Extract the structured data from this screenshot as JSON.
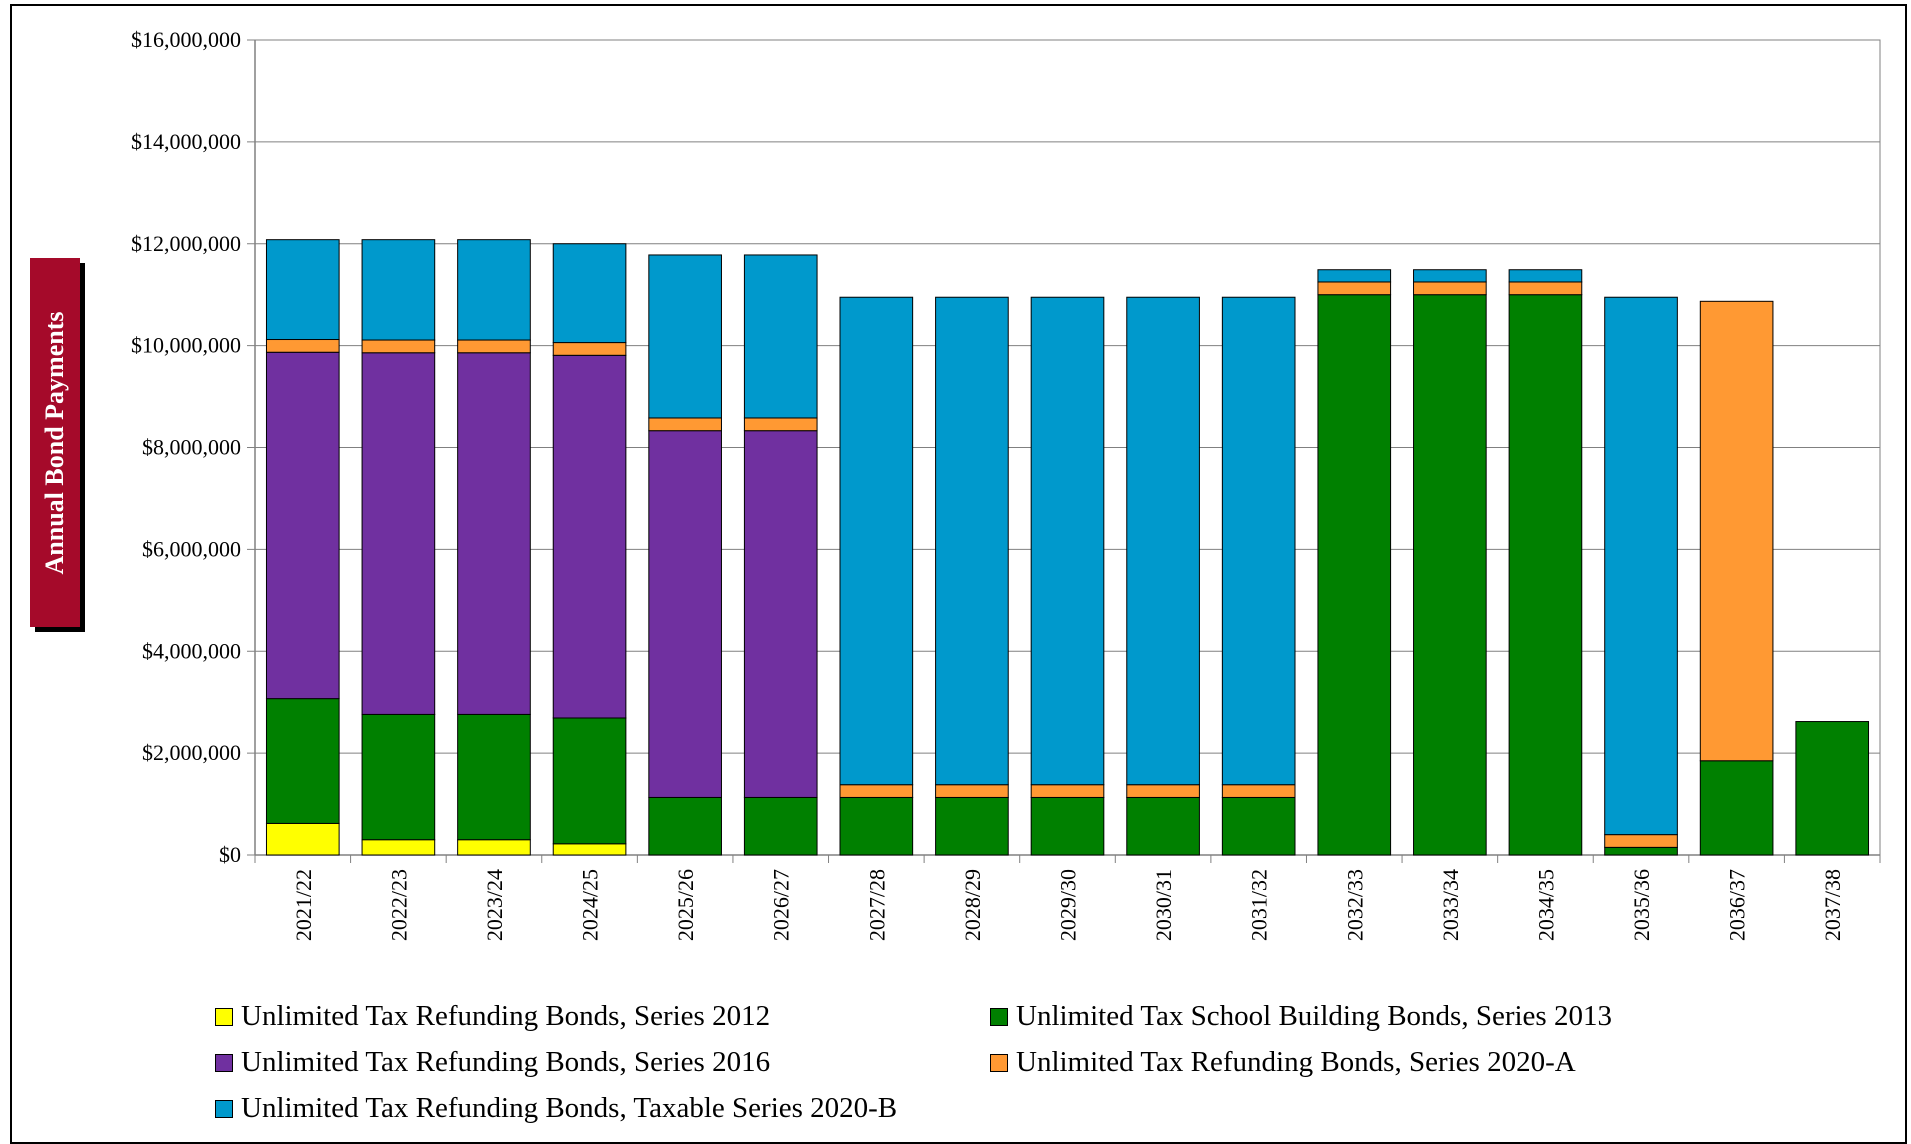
{
  "chart_data": {
    "type": "bar",
    "stacked": true,
    "title": "",
    "xlabel": "",
    "ylabel": "Annual Bond Payments",
    "ylim": [
      0,
      16000000
    ],
    "yticks": [
      "$0",
      "$2,000,000",
      "$4,000,000",
      "$6,000,000",
      "$8,000,000",
      "$10,000,000",
      "$12,000,000",
      "$14,000,000",
      "$16,000,000"
    ],
    "grid": true,
    "legend_position": "bottom",
    "categories": [
      "2021/22",
      "2022/23",
      "2023/24",
      "2024/25",
      "2025/26",
      "2026/27",
      "2027/28",
      "2028/29",
      "2029/30",
      "2030/31",
      "2031/32",
      "2032/33",
      "2033/34",
      "2034/35",
      "2035/36",
      "2036/37",
      "2037/38"
    ],
    "series": [
      {
        "name": "Unlimited Tax Refunding Bonds, Series 2012",
        "color": "#ffff00",
        "values": [
          620000,
          300000,
          300000,
          220000,
          0,
          0,
          0,
          0,
          0,
          0,
          0,
          0,
          0,
          0,
          0,
          0,
          0
        ]
      },
      {
        "name": "Unlimited Tax School Building Bonds, Series 2013",
        "color": "#008000",
        "values": [
          2450000,
          2460000,
          2460000,
          2470000,
          1130000,
          1130000,
          1130000,
          1130000,
          1130000,
          1130000,
          1130000,
          11000000,
          11000000,
          11000000,
          150000,
          1850000,
          2620000
        ]
      },
      {
        "name": "Unlimited Tax Refunding Bonds, Series 2016",
        "color": "#7030a0",
        "values": [
          6800000,
          7100000,
          7100000,
          7120000,
          7200000,
          7200000,
          0,
          0,
          0,
          0,
          0,
          0,
          0,
          0,
          0,
          0,
          0
        ]
      },
      {
        "name": "Unlimited Tax Refunding Bonds, Series 2020-A",
        "color": "#ff9933",
        "values": [
          250000,
          250000,
          250000,
          250000,
          250000,
          250000,
          250000,
          250000,
          250000,
          250000,
          250000,
          250000,
          250000,
          250000,
          250000,
          9020000,
          0
        ]
      },
      {
        "name": "Unlimited Tax Refunding Bonds, Taxable Series 2020-B",
        "color": "#0099cc",
        "values": [
          1960000,
          1970000,
          1970000,
          1940000,
          3200000,
          3200000,
          9570000,
          9570000,
          9570000,
          9570000,
          9570000,
          240000,
          240000,
          240000,
          10550000,
          0,
          0
        ]
      }
    ]
  }
}
